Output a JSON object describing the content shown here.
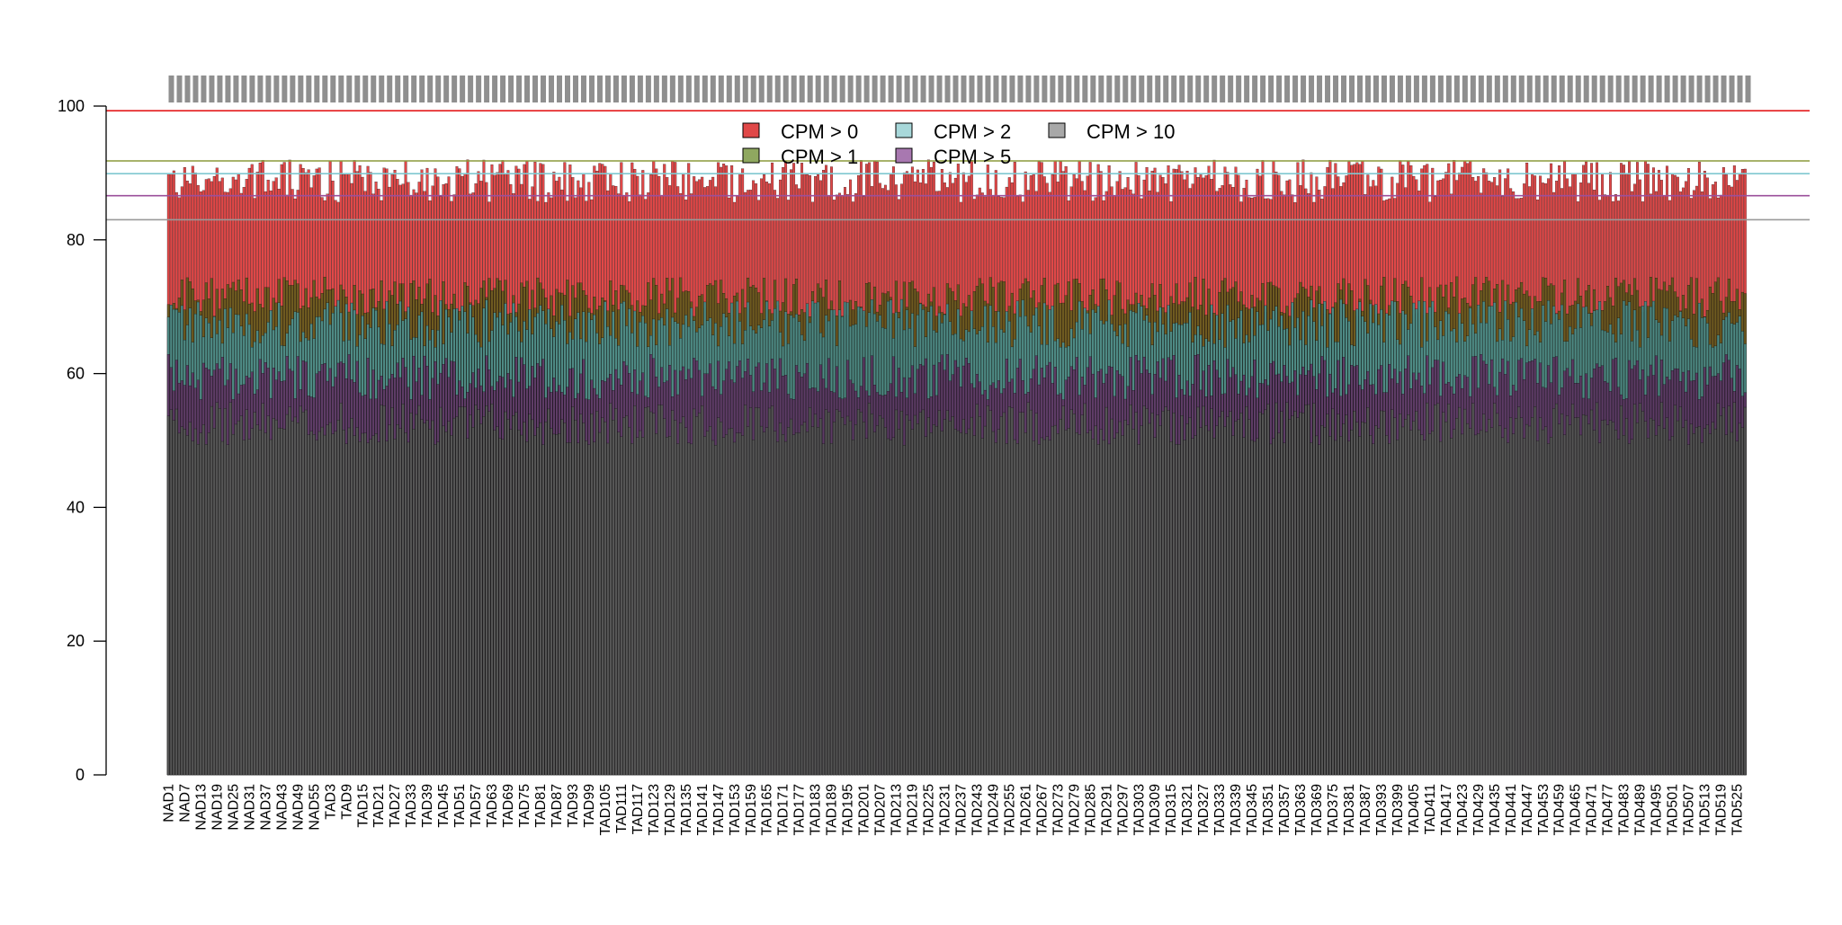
{
  "chart_data": {
    "type": "bar",
    "stacked": "overlaid",
    "title": "",
    "xlabel": "",
    "ylabel": "",
    "ylim": [
      0,
      100
    ],
    "y_ticks": [
      0,
      20,
      40,
      60,
      80,
      100
    ],
    "categories_shown_every": 6,
    "nad_count": 60,
    "tad_count": 526,
    "reference_lines": [
      {
        "value": 99.3,
        "color": "#e41a1c"
      },
      {
        "value": 91.8,
        "color": "#8b9a3c"
      },
      {
        "value": 89.9,
        "color": "#7fc8d0"
      },
      {
        "value": 86.6,
        "color": "#9b4f9b"
      },
      {
        "value": 83.0,
        "color": "#9a9a9a"
      }
    ],
    "legend": {
      "position": "top-center",
      "entries": [
        {
          "label": "CPM > 0",
          "color": "#e04848"
        },
        {
          "label": "CPM > 1",
          "color": "#8fa860"
        },
        {
          "label": "CPM > 2",
          "color": "#a8d8da"
        },
        {
          "label": "CPM > 5",
          "color": "#a878b0"
        },
        {
          "label": "CPM > 10",
          "color": "#a8a8a8"
        }
      ]
    },
    "series": [
      {
        "name": "CPM > 0",
        "color": "#e04848",
        "mean": 88.8
      },
      {
        "name": "CPM > 1",
        "color": "#6e5a20",
        "mean": 71.5
      },
      {
        "name": "CPM > 2",
        "color": "#4e8a84",
        "mean": 67.5
      },
      {
        "name": "CPM > 5",
        "color": "#5e3c66",
        "mean": 59.5
      },
      {
        "name": "CPM > 10",
        "color": "#555555",
        "mean": 52.5
      }
    ],
    "x_tick_labels": [
      "NAD1",
      "NAD7",
      "NAD13",
      "NAD19",
      "NAD25",
      "NAD31",
      "NAD37",
      "NAD43",
      "NAD49",
      "NAD55",
      "TAD3",
      "TAD9",
      "TAD15",
      "TAD21",
      "TAD27",
      "TAD33",
      "TAD39",
      "TAD45",
      "TAD51",
      "TAD57",
      "TAD63",
      "TAD69",
      "TAD75",
      "TAD81",
      "TAD87",
      "TAD93",
      "TAD99",
      "TAD105",
      "TAD111",
      "TAD117",
      "TAD123",
      "TAD129",
      "TAD135",
      "TAD141",
      "TAD147",
      "TAD153",
      "TAD159",
      "TAD165",
      "TAD171",
      "TAD177",
      "TAD183",
      "TAD189",
      "TAD195",
      "TAD201",
      "TAD207",
      "TAD213",
      "TAD219",
      "TAD225",
      "TAD231",
      "TAD237",
      "TAD243",
      "TAD249",
      "TAD255",
      "TAD261",
      "TAD267",
      "TAD273",
      "TAD279",
      "TAD285",
      "TAD291",
      "TAD297",
      "TAD303",
      "TAD309",
      "TAD315",
      "TAD321",
      "TAD327",
      "TAD333",
      "TAD339",
      "TAD345",
      "TAD351",
      "TAD357",
      "TAD363",
      "TAD369",
      "TAD375",
      "TAD381",
      "TAD387",
      "TAD393",
      "TAD399",
      "TAD405",
      "TAD411",
      "TAD417",
      "TAD423",
      "TAD429",
      "TAD435",
      "TAD441",
      "TAD447",
      "TAD453",
      "TAD459",
      "TAD465",
      "TAD471",
      "TAD477",
      "TAD483",
      "TAD489",
      "TAD495",
      "TAD501",
      "TAD507",
      "TAD513",
      "TAD519",
      "TAD525"
    ]
  }
}
